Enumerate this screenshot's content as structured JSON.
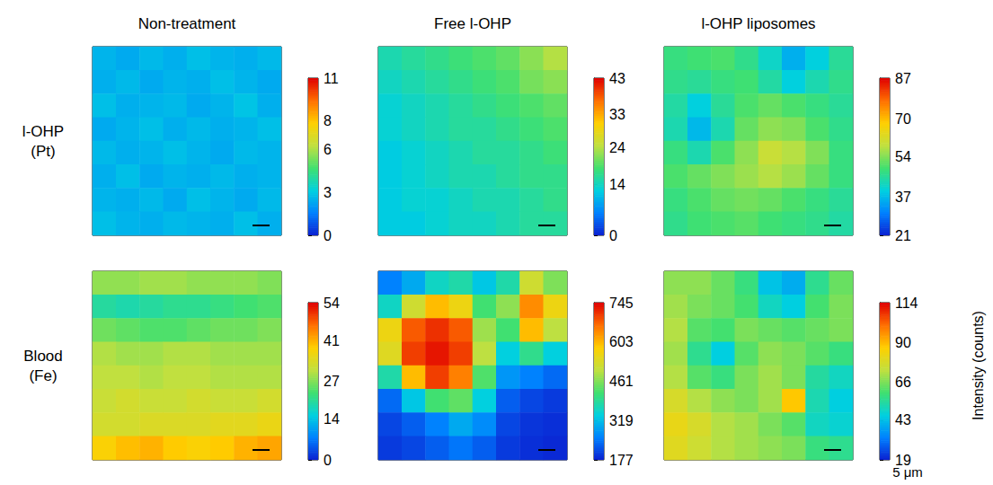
{
  "column_titles": [
    "Non-treatment",
    "Free l-OHP",
    "l-OHP liposomes"
  ],
  "row_labels": [
    [
      "l-OHP",
      "(Pt)"
    ],
    [
      "Blood",
      "(Fe)"
    ]
  ],
  "colorbar_label": "Intensity (counts)",
  "scale_bar_label": "5 μm",
  "chart_data": [
    {
      "type": "heatmap",
      "tick_labels": false,
      "cells": [
        [
          2.6,
          2.4,
          2.7,
          2.5,
          2.8,
          2.6,
          2.5,
          2.7
        ],
        [
          2.5,
          2.7,
          2.4,
          2.6,
          2.5,
          2.8,
          2.6,
          2.4
        ],
        [
          2.8,
          2.5,
          2.6,
          2.7,
          2.4,
          2.6,
          2.9,
          2.5
        ],
        [
          2.4,
          2.6,
          2.8,
          2.5,
          2.7,
          2.5,
          2.6,
          2.8
        ],
        [
          2.7,
          2.5,
          2.6,
          2.8,
          2.6,
          2.4,
          2.7,
          2.6
        ],
        [
          2.5,
          2.8,
          2.4,
          2.6,
          2.5,
          2.7,
          2.5,
          2.6
        ],
        [
          2.6,
          2.5,
          2.7,
          2.4,
          2.8,
          2.6,
          2.4,
          2.7
        ],
        [
          2.8,
          2.6,
          2.5,
          2.7,
          2.6,
          2.5,
          2.8,
          2.5
        ]
      ],
      "colorbar": {
        "range": [
          0,
          11
        ],
        "ticks": [
          0,
          3,
          6,
          8,
          11
        ]
      }
    },
    {
      "type": "heatmap",
      "tick_labels": false,
      "cells": [
        [
          15,
          16,
          17,
          18,
          19,
          20,
          22,
          24
        ],
        [
          14,
          15,
          16,
          17,
          18,
          19,
          21,
          22
        ],
        [
          13,
          14,
          15,
          16,
          17,
          18,
          19,
          20
        ],
        [
          13,
          14,
          15,
          16,
          16,
          17,
          18,
          19
        ],
        [
          12,
          13,
          14,
          15,
          16,
          16,
          17,
          18
        ],
        [
          12,
          13,
          14,
          15,
          15,
          16,
          17,
          17
        ],
        [
          12,
          13,
          13,
          14,
          15,
          15,
          16,
          17
        ],
        [
          12,
          12,
          13,
          14,
          14,
          15,
          16,
          16
        ]
      ],
      "colorbar": {
        "range": [
          0,
          43
        ],
        "ticks": [
          0,
          14,
          24,
          33,
          43
        ]
      }
    },
    {
      "type": "heatmap",
      "tick_labels": false,
      "cells": [
        [
          48,
          49,
          50,
          47,
          42,
          36,
          40,
          46
        ],
        [
          47,
          46,
          48,
          49,
          45,
          40,
          44,
          47
        ],
        [
          45,
          40,
          46,
          50,
          52,
          50,
          48,
          46
        ],
        [
          44,
          37,
          44,
          52,
          55,
          54,
          50,
          47
        ],
        [
          48,
          44,
          50,
          55,
          60,
          58,
          54,
          48
        ],
        [
          50,
          52,
          54,
          56,
          58,
          56,
          52,
          48
        ],
        [
          48,
          50,
          52,
          53,
          52,
          50,
          48,
          46
        ],
        [
          47,
          49,
          50,
          51,
          49,
          48,
          47,
          45
        ]
      ],
      "colorbar": {
        "range": [
          21,
          87
        ],
        "ticks": [
          21,
          37,
          54,
          70,
          87
        ]
      }
    },
    {
      "type": "heatmap",
      "tick_labels": false,
      "cells": [
        [
          28,
          28,
          29,
          29,
          28,
          28,
          28,
          27
        ],
        [
          20,
          19,
          20,
          21,
          21,
          22,
          23,
          24
        ],
        [
          26,
          25,
          24,
          24,
          25,
          26,
          26,
          27
        ],
        [
          30,
          29,
          29,
          30,
          30,
          29,
          29,
          29
        ],
        [
          31,
          31,
          30,
          31,
          31,
          30,
          30,
          30
        ],
        [
          32,
          33,
          32,
          32,
          33,
          32,
          32,
          33
        ],
        [
          33,
          33,
          34,
          34,
          34,
          35,
          35,
          36
        ],
        [
          38,
          40,
          41,
          39,
          38,
          39,
          41,
          42
        ]
      ],
      "colorbar": {
        "range": [
          0,
          54
        ],
        "ticks": [
          0,
          14,
          27,
          41,
          54
        ]
      }
    },
    {
      "type": "heatmap",
      "tick_labels": false,
      "cells": [
        [
          260,
          300,
          360,
          380,
          330,
          380,
          520,
          460
        ],
        [
          360,
          520,
          600,
          560,
          420,
          470,
          640,
          560
        ],
        [
          560,
          680,
          710,
          680,
          480,
          420,
          600,
          500
        ],
        [
          540,
          700,
          730,
          700,
          500,
          340,
          400,
          340
        ],
        [
          380,
          600,
          700,
          650,
          430,
          280,
          260,
          240
        ],
        [
          240,
          330,
          420,
          440,
          340,
          230,
          210,
          200
        ],
        [
          210,
          230,
          260,
          300,
          270,
          210,
          195,
          190
        ],
        [
          200,
          210,
          230,
          250,
          230,
          200,
          190,
          185
        ]
      ],
      "colorbar": {
        "range": [
          177,
          745
        ],
        "ticks": [
          177,
          319,
          461,
          603,
          745
        ]
      }
    },
    {
      "type": "heatmap",
      "tick_labels": false,
      "cells": [
        [
          68,
          68,
          64,
          58,
          44,
          40,
          56,
          64
        ],
        [
          70,
          66,
          64,
          60,
          50,
          46,
          60,
          66
        ],
        [
          72,
          62,
          60,
          66,
          64,
          62,
          64,
          66
        ],
        [
          70,
          56,
          46,
          62,
          68,
          66,
          62,
          58
        ],
        [
          72,
          62,
          58,
          66,
          70,
          66,
          54,
          50
        ],
        [
          78,
          72,
          68,
          66,
          70,
          88,
          52,
          46
        ],
        [
          82,
          78,
          72,
          70,
          66,
          62,
          50,
          48
        ],
        [
          80,
          76,
          72,
          70,
          68,
          66,
          58,
          56
        ]
      ],
      "colorbar": {
        "range": [
          19,
          114
        ],
        "ticks": [
          19,
          43,
          66,
          90,
          114
        ]
      }
    }
  ]
}
